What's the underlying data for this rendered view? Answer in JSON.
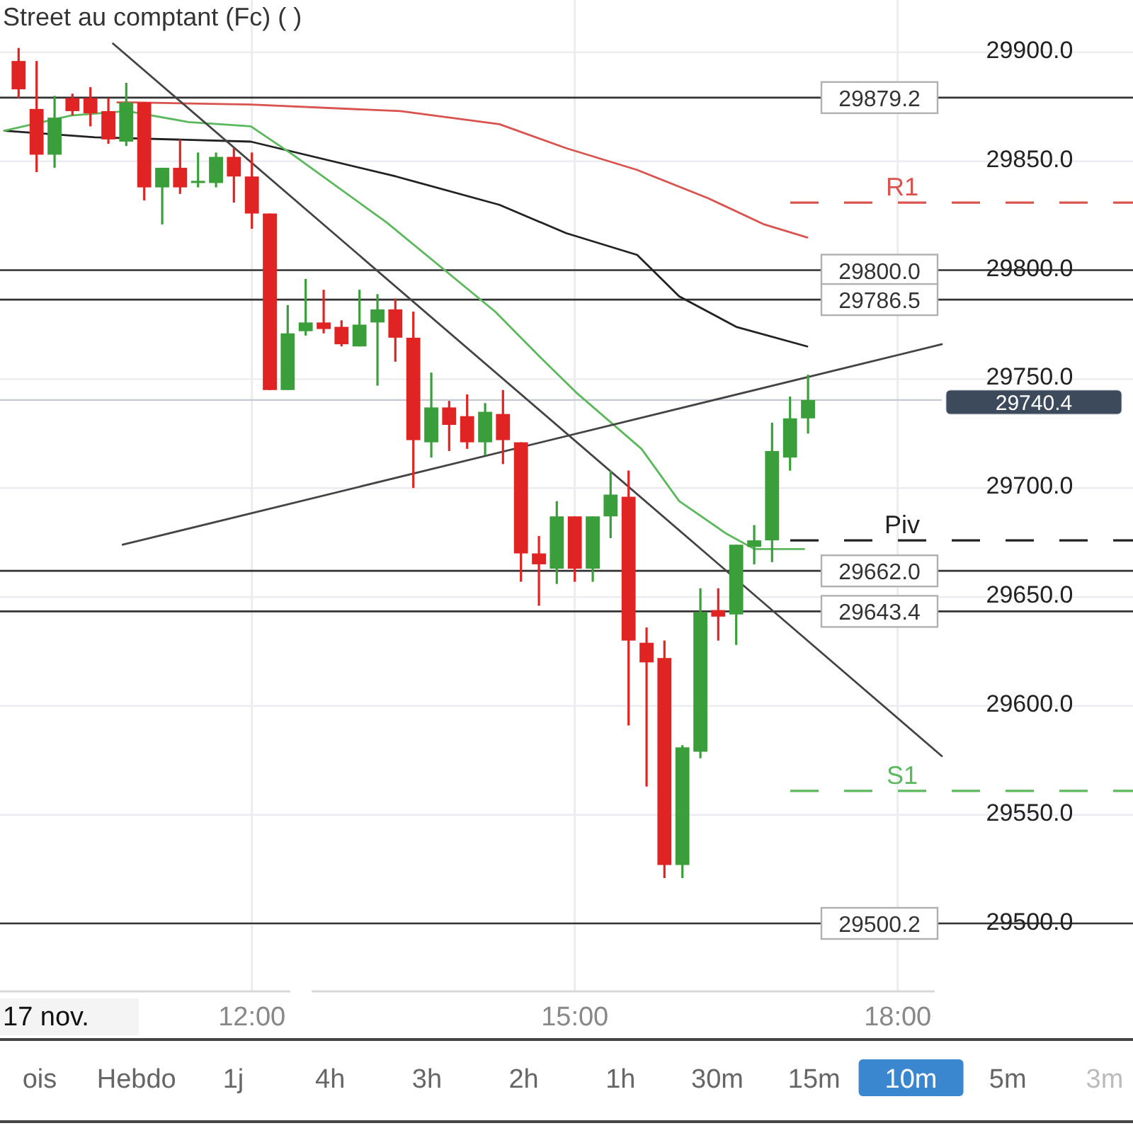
{
  "chart_data": {
    "type": "candlestick",
    "title": "Street au comptant (Fc) ( )",
    "x": [
      9.833,
      10,
      10.167,
      10.333,
      10.5,
      10.667,
      10.833,
      11,
      11.167,
      11.333,
      11.5,
      11.667,
      11.833,
      12,
      12.167,
      12.333,
      12.5,
      12.667,
      12.833,
      13,
      13.167,
      13.333,
      13.5,
      13.667,
      13.833,
      14,
      14.167,
      14.333,
      14.5,
      14.667,
      14.833,
      15,
      15.167,
      15.333,
      15.5,
      15.667,
      15.833,
      16,
      16.167,
      16.333,
      16.5,
      16.667,
      16.833,
      17,
      17.167
    ],
    "ohlc": [
      [
        29896,
        29902,
        29879,
        29883
      ],
      [
        29874,
        29896,
        29845,
        29853
      ],
      [
        29853,
        29880,
        29847,
        29870
      ],
      [
        29879,
        29881,
        29871,
        29873
      ],
      [
        29879,
        29884,
        29866,
        29872
      ],
      [
        29873,
        29879,
        29858,
        29860
      ],
      [
        29859,
        29886,
        29857,
        29877
      ],
      [
        29877,
        29877,
        29832,
        29838
      ],
      [
        29838,
        29847,
        29821,
        29847
      ],
      [
        29847,
        29860,
        29835,
        29838
      ],
      [
        29840,
        29854,
        29838,
        29841
      ],
      [
        29840,
        29854,
        29838,
        29852
      ],
      [
        29852,
        29856,
        29831,
        29843
      ],
      [
        29843,
        29854,
        29819,
        29826
      ],
      [
        29826,
        29826,
        29745,
        29745
      ],
      [
        29745,
        29784,
        29745,
        29771
      ],
      [
        29772,
        29796,
        29770,
        29776
      ],
      [
        29776,
        29791,
        29771,
        29773
      ],
      [
        29774,
        29777,
        29765,
        29766
      ],
      [
        29765,
        29791,
        29765,
        29775
      ],
      [
        29776,
        29789,
        29747,
        29782
      ],
      [
        29782,
        29787,
        29758,
        29769
      ],
      [
        29769,
        29781,
        29700,
        29722
      ],
      [
        29721,
        29753,
        29714,
        29737
      ],
      [
        29737,
        29740,
        29717,
        29729
      ],
      [
        29733,
        29743,
        29718,
        29721
      ],
      [
        29721,
        29739,
        29715,
        29735
      ],
      [
        29734,
        29745,
        29711,
        29722
      ],
      [
        29721,
        29721,
        29657,
        29670
      ],
      [
        29670,
        29678,
        29646,
        29665
      ],
      [
        29663,
        29694,
        29656,
        29687
      ],
      [
        29687,
        29687,
        29657,
        29663
      ],
      [
        29663,
        29687,
        29657,
        29687
      ],
      [
        29687,
        29708,
        29677,
        29697
      ],
      [
        29696,
        29708,
        29591,
        29630
      ],
      [
        29629,
        29636,
        29563,
        29620
      ],
      [
        29622,
        29630,
        29521,
        29527
      ],
      [
        29527,
        29582,
        29521,
        29581
      ],
      [
        29579,
        29654,
        29576,
        29643
      ],
      [
        29644,
        29654,
        29630,
        29641
      ],
      [
        29642,
        29674,
        29628,
        29674
      ],
      [
        29673,
        29683,
        29665,
        29676
      ],
      [
        29676,
        29730,
        29666,
        29717
      ],
      [
        29714,
        29742,
        29708,
        29732
      ],
      [
        29732,
        29752,
        29725,
        29740.4
      ]
    ],
    "colors": [
      "#e02424",
      "#e02424",
      "#3a9f3a",
      "#e02424",
      "#e02424",
      "#e02424",
      "#3a9f3a",
      "#e02424",
      "#3a9f3a",
      "#e02424",
      "#3a9f3a",
      "#3a9f3a",
      "#e02424",
      "#e02424",
      "#e02424",
      "#3a9f3a",
      "#3a9f3a",
      "#e02424",
      "#e02424",
      "#3a9f3a",
      "#3a9f3a",
      "#e02424",
      "#e02424",
      "#3a9f3a",
      "#e02424",
      "#e02424",
      "#3a9f3a",
      "#e02424",
      "#e02424",
      "#e02424",
      "#3a9f3a",
      "#e02424",
      "#3a9f3a",
      "#3a9f3a",
      "#e02424",
      "#e02424",
      "#e02424",
      "#3a9f3a",
      "#3a9f3a",
      "#e02424",
      "#3a9f3a",
      "#3a9f3a",
      "#3a9f3a",
      "#3a9f3a",
      "#3a9f3a"
    ],
    "series": [
      {
        "type": "line",
        "color": "#d9534f",
        "x": [
          10.75,
          10.9,
          11.99,
          13.38,
          14.3,
          14.92,
          15.58,
          16.24,
          16.76,
          17.16
        ],
        "values": [
          29877,
          29877,
          29876,
          29873,
          29867,
          29856,
          29846,
          29833,
          29821,
          29815
        ]
      },
      {
        "type": "line",
        "color": "#222222",
        "x": [
          9.7,
          10.54,
          11.99,
          13.34,
          14.3,
          14.92,
          15.58,
          15.97,
          16.5,
          17.16
        ],
        "values": [
          29864,
          29861,
          29859,
          29843,
          29830,
          29817,
          29807,
          29788,
          29774,
          29765
        ]
      },
      {
        "type": "line",
        "color": "#5cb85c",
        "x": [
          9.7,
          10.32,
          10.84,
          11.41,
          11.99,
          12.38,
          13.25,
          14.26,
          14.66,
          15.01,
          15.62,
          15.97,
          16.41,
          16.67,
          17.13
        ],
        "values": [
          29864,
          29871,
          29873,
          29868,
          29866,
          29853,
          29822,
          29781,
          29761,
          29744,
          29718,
          29694,
          29679,
          29672,
          29672
        ]
      },
      {
        "type": "line",
        "color": "#444444",
        "x": [
          10.71,
          18.41
        ],
        "values": [
          29904,
          29577
        ]
      },
      {
        "type": "line",
        "color": "#444444",
        "x": [
          10.8,
          18.41
        ],
        "values": [
          29674,
          29766
        ]
      }
    ],
    "xlim": [
      9.66,
      18.41
    ],
    "ylim": [
      29469,
      29924
    ],
    "xticks": [
      {
        "value": 12,
        "label": "12:00"
      },
      {
        "value": 15,
        "label": "15:00"
      },
      {
        "value": 18,
        "label": "18:00"
      }
    ],
    "yticks": [
      {
        "value": 29500,
        "label": "29500.0"
      },
      {
        "value": 29550,
        "label": "29550.0"
      },
      {
        "value": 29600,
        "label": "29600.0"
      },
      {
        "value": 29650,
        "label": "29650.0"
      },
      {
        "value": 29700,
        "label": "29700.0"
      },
      {
        "value": 29750,
        "label": "29750.0"
      },
      {
        "value": 29800,
        "label": "29800.0"
      },
      {
        "value": 29850,
        "label": "29850.0"
      },
      {
        "value": 29900,
        "label": "29900.0"
      }
    ],
    "grid": true,
    "ref_lines": [
      {
        "axis": "y",
        "value": 29879.2,
        "label": "29879.2"
      },
      {
        "axis": "y",
        "value": 29800.0,
        "label": "29800.0"
      },
      {
        "axis": "y",
        "value": 29786.5,
        "label": "29786.5"
      },
      {
        "axis": "y",
        "value": 29662.0,
        "label": "29662.0"
      },
      {
        "axis": "y",
        "value": 29643.4,
        "label": "29643.4"
      },
      {
        "axis": "y",
        "value": 29500.2,
        "label": "29500.2"
      },
      {
        "axis": "y",
        "value": 29740.4,
        "label": "29740.4",
        "color": "#c5c9d2"
      },
      {
        "axis": "y",
        "value": 29831,
        "label": "R1",
        "color": "#d9534f",
        "line_style": "dashed"
      },
      {
        "axis": "y",
        "value": 29676,
        "label": "Piv",
        "color": "#222222",
        "line_style": "dashed"
      },
      {
        "axis": "y",
        "value": 29561,
        "label": "S1",
        "color": "#5cb85c",
        "line_style": "dashed"
      }
    ],
    "annotations": [
      "17 nov.",
      "ois",
      "Hebdo",
      "1j",
      "4h",
      "3h",
      "2h",
      "1h",
      "30m",
      "15m",
      "10m",
      "5m",
      "3m"
    ]
  }
}
